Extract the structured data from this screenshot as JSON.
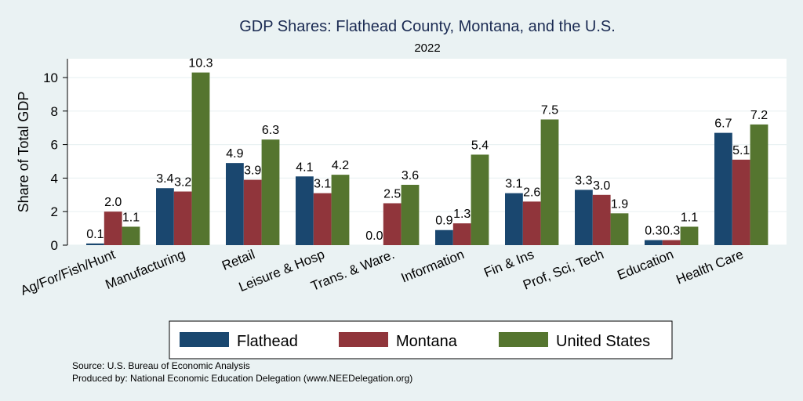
{
  "chart_data": {
    "type": "bar",
    "title": "GDP Shares: Flathead County, Montana, and the U.S.",
    "subtitle": "2022",
    "xlabel": "",
    "ylabel": "Share of Total GDP",
    "ylim": [
      0,
      11.1
    ],
    "yticks": [
      0,
      2,
      4,
      6,
      8,
      10
    ],
    "grid": true,
    "legend_position": "bottom",
    "categories": [
      "Ag/For/Fish/Hunt",
      "Manufacturing",
      "Retail",
      "Leisure & Hosp",
      "Trans. & Ware.",
      "Information",
      "Fin & Ins",
      "Prof, Sci, Tech",
      "Education",
      "Health Care"
    ],
    "series": [
      {
        "name": "Flathead",
        "color": "#1a476f",
        "values": [
          0.1,
          3.4,
          4.9,
          4.1,
          0.0,
          0.9,
          3.1,
          3.3,
          0.3,
          6.7
        ],
        "labels": [
          "0.1",
          "3.4",
          "4.9",
          "4.1",
          "0.0",
          "0.9",
          "3.1",
          "3.3",
          "0.3",
          "6.7"
        ]
      },
      {
        "name": "Montana",
        "color": "#90353b",
        "values": [
          2.0,
          3.2,
          3.9,
          3.1,
          2.5,
          1.3,
          2.6,
          3.0,
          0.3,
          5.1
        ],
        "labels": [
          "2.0",
          "3.2",
          "3.9",
          "3.1",
          "2.5",
          "1.3",
          "2.6",
          "3.0",
          "0.3",
          "5.1"
        ]
      },
      {
        "name": "United States",
        "color": "#55752f",
        "values": [
          1.1,
          10.3,
          6.3,
          4.2,
          3.6,
          5.4,
          7.5,
          1.9,
          1.1,
          7.2
        ],
        "labels": [
          "1.1",
          "10.3",
          "6.3",
          "4.2",
          "3.6",
          "5.4",
          "7.5",
          "1.9",
          "1.1",
          "7.2"
        ]
      }
    ]
  },
  "footer": {
    "source": "Source: U.S. Bureau of Economic Analysis",
    "produced_by": "Produced by: National Economic Education Delegation (www.NEEDelegation.org)"
  }
}
